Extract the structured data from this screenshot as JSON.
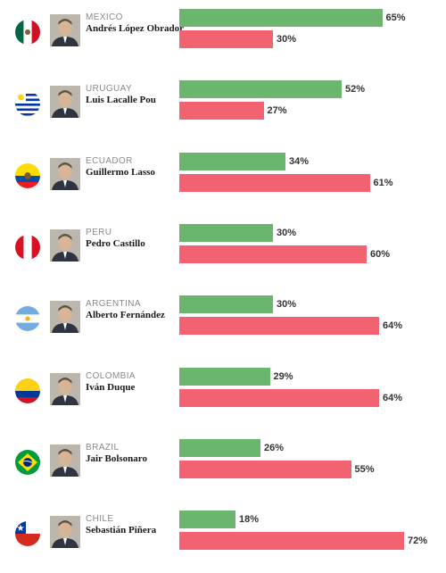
{
  "chart_data": {
    "type": "bar",
    "orientation": "horizontal",
    "xlim": [
      0,
      100
    ],
    "series": [
      {
        "color": "#6cb56f"
      },
      {
        "color": "#f26271"
      }
    ],
    "rows": [
      {
        "country": "MEXICO",
        "leader": "Andrés López Obrador",
        "flag": "mexico",
        "approve": 65,
        "disapprove": 30,
        "approve_label": "65%",
        "disapprove_label": "30%"
      },
      {
        "country": "URUGUAY",
        "leader": "Luis Lacalle Pou",
        "flag": "uruguay",
        "approve": 52,
        "disapprove": 27,
        "approve_label": "52%",
        "disapprove_label": "27%"
      },
      {
        "country": "ECUADOR",
        "leader": "Guillermo Lasso",
        "flag": "ecuador",
        "approve": 34,
        "disapprove": 61,
        "approve_label": "34%",
        "disapprove_label": "61%"
      },
      {
        "country": "PERU",
        "leader": "Pedro Castillo",
        "flag": "peru",
        "approve": 30,
        "disapprove": 60,
        "approve_label": "30%",
        "disapprove_label": "60%"
      },
      {
        "country": "ARGENTINA",
        "leader": "Alberto Fernández",
        "flag": "argentina",
        "approve": 30,
        "disapprove": 64,
        "approve_label": "30%",
        "disapprove_label": "64%"
      },
      {
        "country": "COLOMBIA",
        "leader": "Iván Duque",
        "flag": "colombia",
        "approve": 29,
        "disapprove": 64,
        "approve_label": "29%",
        "disapprove_label": "64%"
      },
      {
        "country": "BRAZIL",
        "leader": "Jair Bolsonaro",
        "flag": "brazil",
        "approve": 26,
        "disapprove": 55,
        "approve_label": "26%",
        "disapprove_label": "55%"
      },
      {
        "country": "CHILE",
        "leader": "Sebastián Piñera",
        "flag": "chile",
        "approve": 18,
        "disapprove": 72,
        "approve_label": "18%",
        "disapprove_label": "72%"
      }
    ]
  }
}
